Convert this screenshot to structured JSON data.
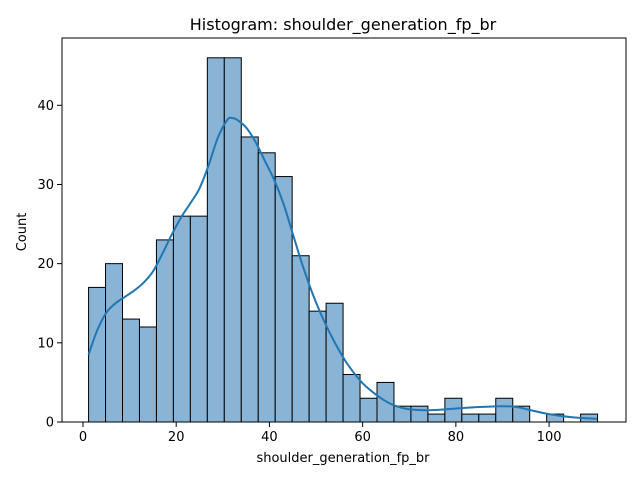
{
  "chart_data": {
    "type": "histogram",
    "title": "Histogram: shoulder_generation_fp_br",
    "xlabel": "shoulder_generation_fp_br",
    "ylabel": "Count",
    "xlim": [
      -4.5,
      116.5
    ],
    "ylim": [
      0,
      48.5
    ],
    "xticks": [
      0,
      20,
      40,
      60,
      80,
      100
    ],
    "yticks": [
      0,
      10,
      20,
      30,
      40
    ],
    "bin_width": 3.64,
    "bin_start": 1.2,
    "counts": [
      17,
      20,
      13,
      12,
      23,
      26,
      26,
      46,
      46,
      36,
      34,
      31,
      21,
      14,
      15,
      6,
      3,
      5,
      2,
      2,
      1,
      3,
      1,
      1,
      3,
      2,
      0,
      1,
      0,
      1
    ],
    "kde": {
      "x": [
        1.2,
        3,
        5,
        7,
        9,
        11,
        13,
        15,
        17,
        19,
        21,
        23,
        25,
        27,
        29,
        31,
        32,
        33,
        35,
        37,
        39,
        41,
        43,
        45,
        47,
        49,
        51,
        53,
        55,
        57,
        60,
        63,
        66,
        70,
        75,
        80,
        85,
        90,
        93,
        96,
        100,
        105,
        110.3
      ],
      "y": [
        8.5,
        11.5,
        13.8,
        15.0,
        15.8,
        16.6,
        17.6,
        19.0,
        21.2,
        23.6,
        25.8,
        27.6,
        29.5,
        32.5,
        36.0,
        38.2,
        38.4,
        38.2,
        37.2,
        35.4,
        33.0,
        30.6,
        27.6,
        23.8,
        20.0,
        16.6,
        13.7,
        11.2,
        9.0,
        7.1,
        4.9,
        3.4,
        2.3,
        1.6,
        1.5,
        1.7,
        1.9,
        2.0,
        1.9,
        1.5,
        1.0,
        0.6,
        0.4
      ]
    },
    "bar_color": "#8ab4d6",
    "bar_edge_color": "#000000",
    "kde_color": "#1f77b4",
    "grid": false
  }
}
